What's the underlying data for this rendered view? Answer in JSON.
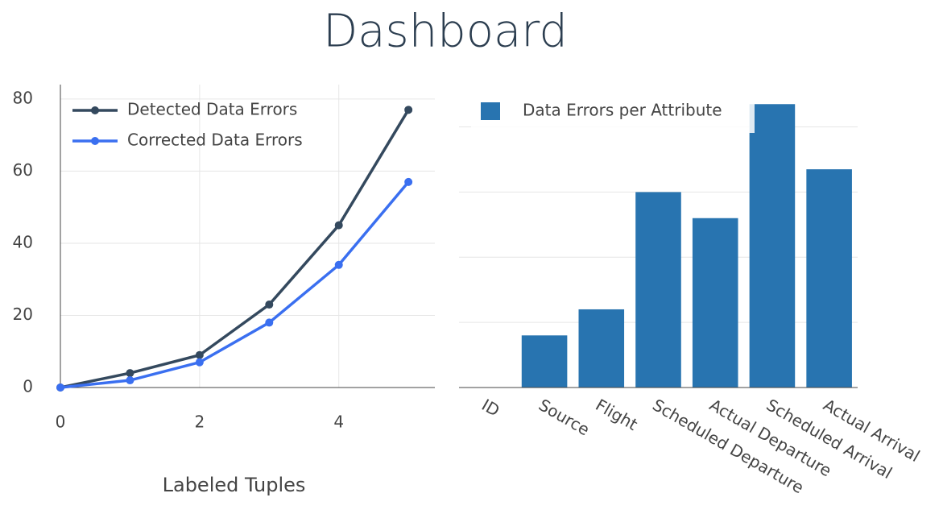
{
  "title": "Dashboard",
  "chart_data": [
    {
      "type": "line",
      "x_label": "Labeled Tuples",
      "x": [
        0,
        1,
        2,
        3,
        4,
        5
      ],
      "series": [
        {
          "name": "Detected Data Errors",
          "color": "#34495e",
          "values": [
            0,
            4,
            9,
            23,
            45,
            77
          ]
        },
        {
          "name": "Corrected Data Errors",
          "color": "#3a6ff0",
          "values": [
            0,
            2,
            7,
            18,
            34,
            57
          ]
        }
      ],
      "xlim": [
        0,
        5.38
      ],
      "ylim": [
        0,
        84
      ],
      "xticks": [
        0,
        2,
        4
      ],
      "yticks": [
        0,
        20,
        40,
        60,
        80
      ],
      "grid": true,
      "legend": "top-left"
    },
    {
      "type": "bar",
      "categories": [
        "ID",
        "Source",
        "Flight",
        "Scheduled Departure",
        "Actual Departure",
        "Scheduled Arrival",
        "Actual Arrival"
      ],
      "series": [
        {
          "name": "Data Errors per Attribute",
          "color": "#2874b0",
          "values": [
            0,
            16,
            24,
            60,
            52,
            87,
            67
          ]
        }
      ],
      "ylim": [
        0,
        93
      ],
      "yticks": [
        0,
        20,
        40,
        60,
        80
      ],
      "grid": true,
      "legend": "top-left"
    }
  ]
}
